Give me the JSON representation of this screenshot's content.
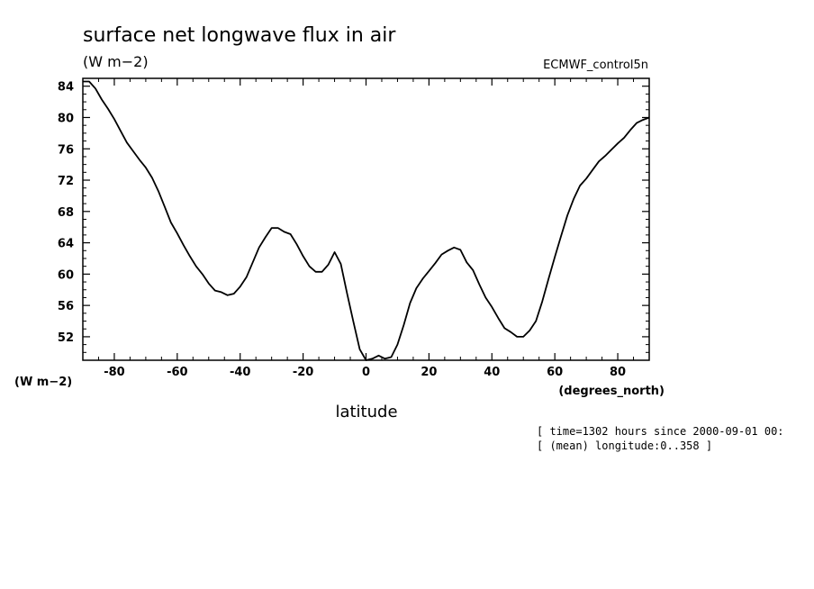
{
  "chart_data": {
    "type": "line",
    "title": "surface net longwave flux in air",
    "units_top": "(W m−2)",
    "units_left": "(W m−2)",
    "dataset": "ECMWF_control5n",
    "xlabel": "latitude",
    "xunits": "(degrees_north)",
    "xlim": [
      -90,
      90
    ],
    "ylim": [
      49,
      85
    ],
    "xticks": [
      -80,
      -60,
      -40,
      -20,
      0,
      20,
      40,
      60,
      80
    ],
    "yticks": [
      52,
      56,
      60,
      64,
      68,
      72,
      76,
      80,
      84
    ],
    "info": [
      "[ time=1302 hours since 2000-09-01 00:",
      "[ (mean) longitude:0..358 ]"
    ],
    "series": [
      {
        "name": "surface net longwave flux in air",
        "x": [
          -90,
          -88,
          -86,
          -84,
          -82,
          -80,
          -78,
          -76,
          -74,
          -72,
          -70,
          -68,
          -66,
          -64,
          -62,
          -60,
          -58,
          -56,
          -54,
          -52,
          -50,
          -48,
          -46,
          -44,
          -42,
          -40,
          -38,
          -36,
          -34,
          -32,
          -30,
          -28,
          -26,
          -24,
          -22,
          -20,
          -18,
          -16,
          -14,
          -12,
          -10,
          -8,
          -6,
          -4,
          -2,
          0,
          2,
          4,
          6,
          8,
          10,
          12,
          14,
          16,
          18,
          20,
          22,
          24,
          26,
          28,
          30,
          32,
          34,
          36,
          38,
          40,
          42,
          44,
          46,
          48,
          50,
          52,
          54,
          56,
          58,
          60,
          62,
          64,
          66,
          68,
          70,
          72,
          74,
          76,
          78,
          80,
          82,
          84,
          86,
          88,
          90
        ],
        "values": [
          84.6,
          84.6,
          83.7,
          82.3,
          81.1,
          79.8,
          78.3,
          76.8,
          75.7,
          74.6,
          73.6,
          72.3,
          70.6,
          68.6,
          66.6,
          65.2,
          63.7,
          62.3,
          61.0,
          60.0,
          58.8,
          57.9,
          57.7,
          57.3,
          57.5,
          58.4,
          59.6,
          61.5,
          63.4,
          64.7,
          65.9,
          65.9,
          65.4,
          65.1,
          63.8,
          62.3,
          61.0,
          60.3,
          60.3,
          61.2,
          62.8,
          61.3,
          57.5,
          53.9,
          50.4,
          49.0,
          49.2,
          49.6,
          49.2,
          49.4,
          51.0,
          53.5,
          56.3,
          58.2,
          59.4,
          60.4,
          61.4,
          62.5,
          63.0,
          63.4,
          63.1,
          61.5,
          60.5,
          58.7,
          57.0,
          55.8,
          54.4,
          53.1,
          52.6,
          52.0,
          52.0,
          52.8,
          54.0,
          56.5,
          59.4,
          62.2,
          64.9,
          67.5,
          69.6,
          71.3,
          72.2,
          73.3,
          74.4,
          75.1,
          75.9,
          76.7,
          77.4,
          78.4,
          79.3,
          79.7,
          80.0
        ]
      }
    ]
  }
}
